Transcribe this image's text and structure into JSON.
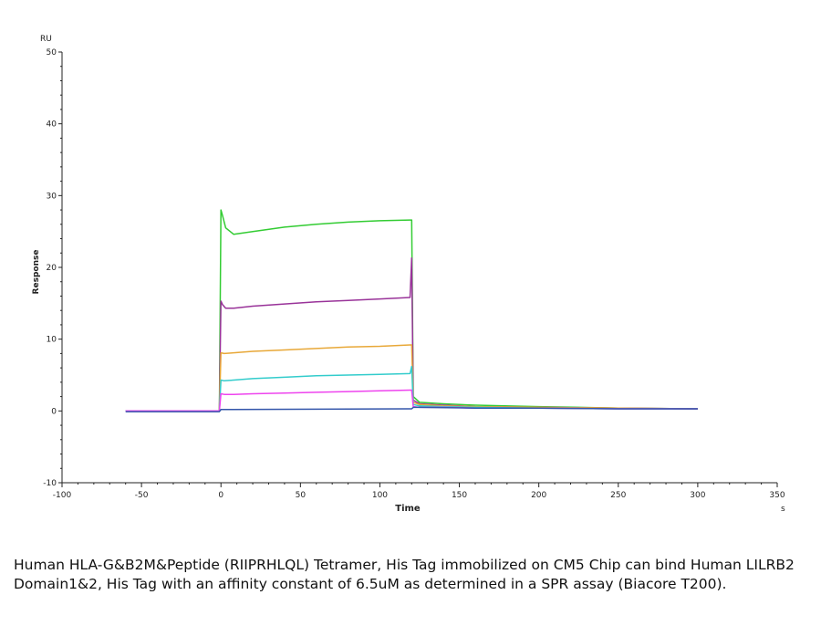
{
  "chart_data": {
    "type": "line",
    "xlabel": "Time",
    "xunit": "s",
    "ylabel": "Response",
    "yunit": "RU",
    "xlim": [
      -100,
      350
    ],
    "ylim": [
      -10,
      50
    ],
    "xticks": [
      -100,
      -50,
      0,
      50,
      100,
      150,
      200,
      250,
      300,
      350
    ],
    "yticks": [
      -10,
      0,
      10,
      20,
      30,
      40,
      50
    ],
    "grid": false,
    "legend": "none",
    "series": [
      {
        "color": "#33cc33",
        "x": [
          -60,
          -1,
          0,
          1,
          3,
          8,
          20,
          40,
          60,
          80,
          100,
          119,
          120,
          121,
          125,
          140,
          160,
          200,
          250,
          300
        ],
        "y": [
          0,
          0,
          28.0,
          27.2,
          25.5,
          24.6,
          25.0,
          25.6,
          26.0,
          26.3,
          26.5,
          26.6,
          26.6,
          2.0,
          1.2,
          1.0,
          0.8,
          0.6,
          0.4,
          0.3
        ]
      },
      {
        "color": "#993399",
        "x": [
          -60,
          -1,
          0,
          1,
          3,
          8,
          20,
          40,
          60,
          80,
          100,
          119,
          120,
          121,
          125,
          140,
          160,
          200,
          250,
          300
        ],
        "y": [
          0,
          0,
          15.3,
          14.8,
          14.3,
          14.3,
          14.6,
          14.9,
          15.2,
          15.4,
          15.6,
          15.8,
          21.3,
          1.5,
          1.0,
          0.8,
          0.6,
          0.5,
          0.4,
          0.3
        ]
      },
      {
        "color": "#e8a838",
        "x": [
          -60,
          -1,
          0,
          2,
          8,
          20,
          40,
          60,
          80,
          100,
          119,
          120,
          121,
          125,
          140,
          160,
          200,
          250,
          300
        ],
        "y": [
          0,
          0,
          8.1,
          8.0,
          8.1,
          8.3,
          8.5,
          8.7,
          8.9,
          9.0,
          9.2,
          9.2,
          1.2,
          0.9,
          0.7,
          0.6,
          0.5,
          0.4,
          0.3
        ]
      },
      {
        "color": "#33cccc",
        "x": [
          -60,
          -1,
          0,
          2,
          8,
          20,
          40,
          60,
          80,
          100,
          119,
          120,
          121,
          125,
          140,
          160,
          200,
          250,
          300
        ],
        "y": [
          0,
          0,
          4.3,
          4.2,
          4.3,
          4.5,
          4.7,
          4.9,
          5.0,
          5.1,
          5.2,
          6.2,
          0.9,
          0.7,
          0.6,
          0.5,
          0.4,
          0.3,
          0.3
        ]
      },
      {
        "color": "#ee44ee",
        "x": [
          -60,
          -1,
          0,
          2,
          8,
          20,
          40,
          60,
          80,
          100,
          119,
          120,
          121,
          125,
          140,
          160,
          200,
          250,
          300
        ],
        "y": [
          0,
          0,
          2.4,
          2.3,
          2.3,
          2.4,
          2.5,
          2.6,
          2.7,
          2.8,
          2.9,
          2.9,
          0.6,
          0.5,
          0.5,
          0.4,
          0.4,
          0.3,
          0.3
        ]
      },
      {
        "color": "#3355aa",
        "x": [
          -60,
          -1,
          0,
          119,
          120,
          121,
          125,
          160,
          200,
          250,
          300
        ],
        "y": [
          -0.1,
          -0.1,
          0.2,
          0.3,
          0.3,
          0.5,
          0.5,
          0.4,
          0.4,
          0.3,
          0.3
        ]
      }
    ]
  },
  "caption": "Human HLA-G&B2M&Peptide (RIIPRHLQL) Tetramer, His Tag immobilized on CM5 Chip can bind Human LILRB2 Domain1&2, His Tag with an affinity constant of 6.5uM as determined in a SPR assay (Biacore T200)."
}
